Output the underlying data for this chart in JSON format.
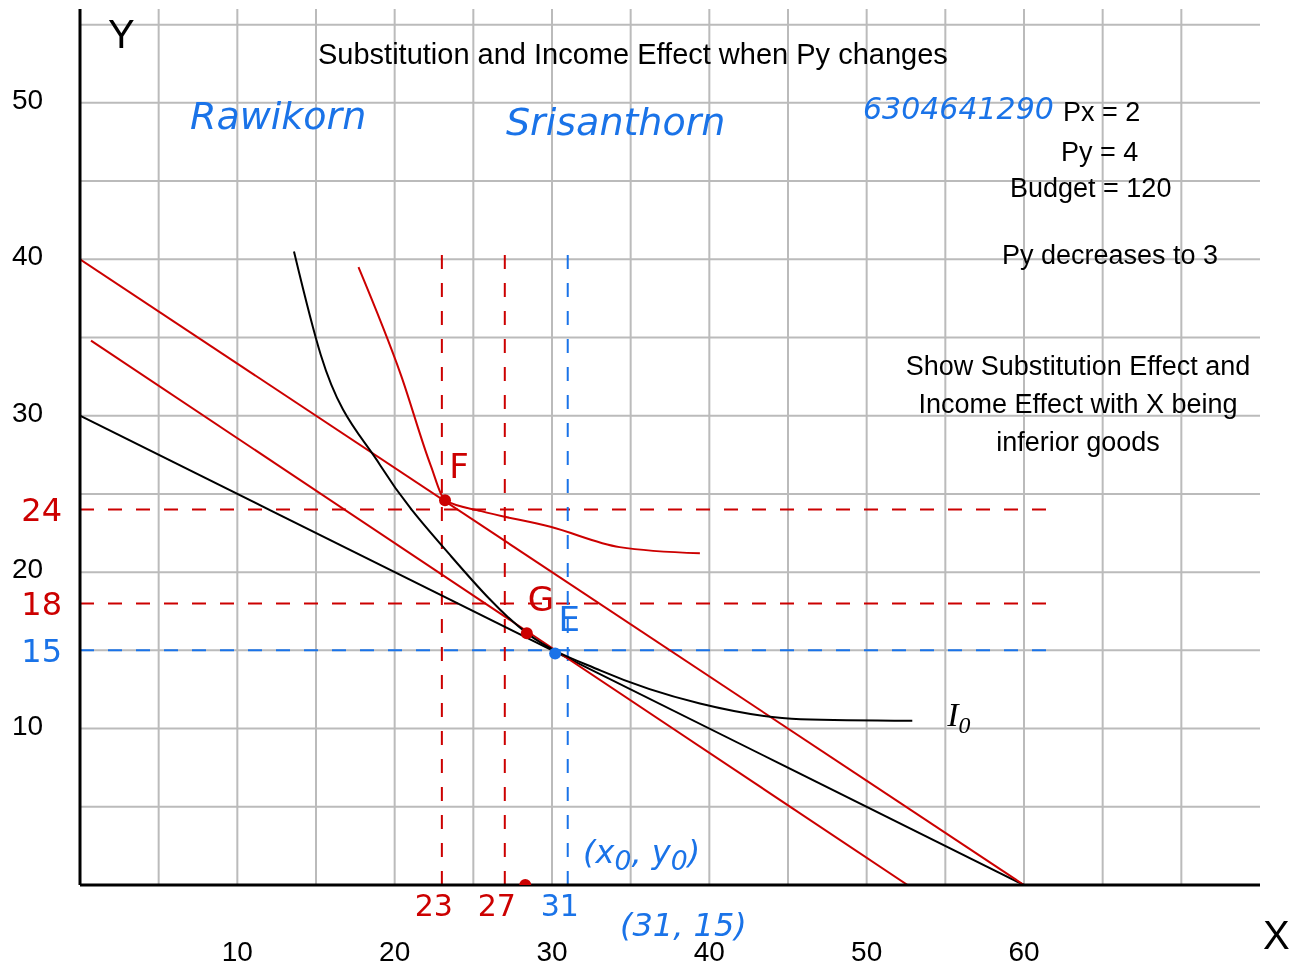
{
  "chart_data": {
    "type": "line",
    "title": "Substitution and Income Effect when Py changes",
    "xlabel": "X",
    "ylabel": "Y",
    "xlim": [
      0,
      75
    ],
    "ylim": [
      0,
      56
    ],
    "xticks": [
      {
        "value": 5,
        "label": null
      },
      10,
      {
        "value": 15,
        "label": null
      },
      20,
      {
        "value": 25,
        "label": null
      },
      30,
      {
        "value": 35,
        "label": null
      },
      40,
      {
        "value": 45,
        "label": null
      },
      50,
      {
        "value": 55,
        "label": null
      },
      60,
      {
        "value": 65,
        "label": null
      },
      {
        "value": 70,
        "label": null
      }
    ],
    "yticks": [
      {
        "value": 5,
        "label": null
      },
      10,
      {
        "value": 15,
        "label": null
      },
      20,
      {
        "value": 25,
        "label": null
      },
      30,
      {
        "value": 35,
        "label": null
      },
      40,
      {
        "value": 45,
        "label": null
      },
      50,
      {
        "value": 55,
        "label": null
      }
    ],
    "grid": true,
    "series": [
      {
        "color": "#000000",
        "x": [
          0,
          60
        ],
        "values": [
          30,
          0
        ]
      },
      {
        "color": "#cc0000",
        "x": [
          0,
          60
        ],
        "values": [
          40,
          0
        ]
      },
      {
        "color": "#cc0000",
        "x": [
          0.7,
          52.6
        ],
        "values": [
          34.8,
          0
        ]
      },
      {
        "name": "I$_{0}$",
        "color": "#000000",
        "x": [
          13.6,
          15.3,
          19.1,
          23.6,
          28.4,
          33.1,
          39.4,
          45.8,
          52.9
        ],
        "values": [
          40.5,
          33.9,
          26.8,
          21,
          16.1,
          13.7,
          11.6,
          10.6,
          10.5
        ]
      },
      {
        "color": "#cc0000",
        "x": [
          17.7,
          20.4,
          22.3,
          23.2,
          25.5,
          29.9,
          34.3,
          39.4
        ],
        "values": [
          39.5,
          32.6,
          26.8,
          24.6,
          23.9,
          22.9,
          21.6,
          21.2
        ]
      },
      {
        "type": "scatter",
        "color": "#cc0000",
        "x": [
          23.2,
          28.4,
          28.3
        ],
        "values": [
          24.6,
          16.1,
          0
        ]
      },
      {
        "type": "scatter",
        "color": "#1a73e8",
        "x": [
          30.2
        ],
        "values": [
          14.8
        ]
      }
    ],
    "ref_lines": [
      {
        "axis": "y",
        "value": 24,
        "label": "24",
        "color": "#cc0000",
        "line_style": "dashed"
      },
      {
        "axis": "y",
        "value": 18,
        "label": "18",
        "color": "#cc0000",
        "line_style": "dashed"
      },
      {
        "axis": "y",
        "value": 15,
        "label": "15",
        "color": "#1a73e8",
        "line_style": "dashed"
      },
      {
        "axis": "x",
        "value": 23,
        "label": "23",
        "color": "#cc0000",
        "line_style": "dashed"
      },
      {
        "axis": "x",
        "value": 27,
        "label": "27",
        "color": "#cc0000",
        "line_style": "dashed"
      },
      {
        "axis": "x",
        "value": 31,
        "label": "31",
        "color": "#1a73e8",
        "line_style": "dashed"
      }
    ],
    "annotations": [
      "Px = 2",
      "Py = 4",
      "Budget = 120",
      "Py  decreases to 3",
      "Show Substitution Effect and Income Effect with X being inferior goods",
      "Rawikorn",
      "Srisanthorn",
      "6304641290",
      {
        "text": "F",
        "x": 23.2,
        "y": 24.6
      },
      {
        "text": "G",
        "x": 28.4,
        "y": 16.1
      },
      {
        "text": "E",
        "x": 30.2,
        "y": 14.8
      },
      "(x$_{0}$, y$_{0}$)",
      "(31, 15)"
    ]
  }
}
